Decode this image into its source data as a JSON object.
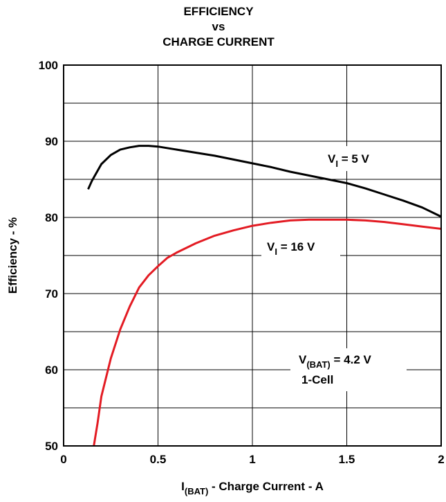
{
  "chart_data": {
    "type": "line",
    "title": [
      "EFFICIENCY",
      "vs",
      "CHARGE CURRENT"
    ],
    "xlabel": {
      "main": "I",
      "sub": "(BAT)",
      "rest": " - Charge Current - A"
    },
    "ylabel": "Efficiency - %",
    "xlim": [
      0,
      2
    ],
    "ylim": [
      50,
      100
    ],
    "x_ticks": [
      0,
      0.5,
      1,
      1.5,
      2
    ],
    "x_tick_labels": [
      "0",
      "0.5",
      "1",
      "1.5",
      "2"
    ],
    "y_ticks": [
      50,
      60,
      70,
      80,
      90,
      100
    ],
    "y_tick_labels": [
      "50",
      "60",
      "70",
      "80",
      "90",
      "100"
    ],
    "grid": true,
    "series": [
      {
        "name": "VI = 5 V",
        "color": "#000000",
        "x": [
          0.13,
          0.15,
          0.2,
          0.25,
          0.3,
          0.35,
          0.4,
          0.45,
          0.5,
          0.6,
          0.7,
          0.8,
          0.9,
          1.0,
          1.1,
          1.2,
          1.3,
          1.4,
          1.5,
          1.6,
          1.7,
          1.8,
          1.9,
          2.0
        ],
        "y": [
          83.7,
          84.8,
          87.0,
          88.2,
          88.9,
          89.2,
          89.4,
          89.4,
          89.3,
          88.9,
          88.5,
          88.1,
          87.6,
          87.1,
          86.6,
          86.0,
          85.5,
          85.0,
          84.5,
          83.8,
          83.0,
          82.2,
          81.3,
          80.1
        ]
      },
      {
        "name": "VI = 16 V",
        "color": "#e31b23",
        "x": [
          0.16,
          0.18,
          0.2,
          0.25,
          0.3,
          0.35,
          0.4,
          0.45,
          0.5,
          0.55,
          0.6,
          0.65,
          0.7,
          0.8,
          0.9,
          1.0,
          1.1,
          1.2,
          1.3,
          1.4,
          1.5,
          1.6,
          1.7,
          1.8,
          1.9,
          2.0
        ],
        "y": [
          50.0,
          53.0,
          56.5,
          61.5,
          65.3,
          68.3,
          70.8,
          72.4,
          73.6,
          74.7,
          75.4,
          76.0,
          76.6,
          77.6,
          78.3,
          78.9,
          79.3,
          79.6,
          79.7,
          79.7,
          79.7,
          79.6,
          79.4,
          79.1,
          78.8,
          78.5
        ]
      }
    ],
    "annotations": [
      {
        "main": "V",
        "sub": "I",
        "rest": " = 5 V"
      },
      {
        "main": "V",
        "sub": "I",
        "rest": " = 16 V"
      },
      {
        "main": "V",
        "sub": "(BAT)",
        "rest": " = 4.2 V",
        "line2": "1-Cell"
      }
    ]
  }
}
